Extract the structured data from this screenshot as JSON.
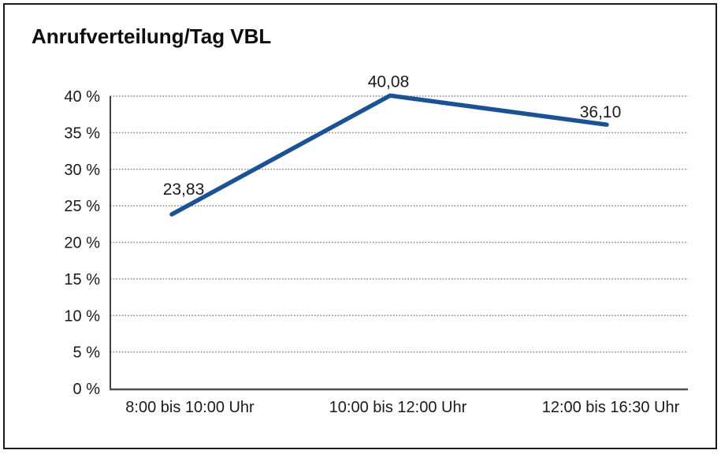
{
  "chart_data": {
    "type": "line",
    "title": "Anrufverteilung/Tag VBL",
    "categories": [
      "8:00 bis 10:00 Uhr",
      "10:00 bis 12:00 Uhr",
      "12:00 bis 16:30 Uhr"
    ],
    "values": [
      23.83,
      40.08,
      36.1
    ],
    "value_labels": [
      "23,83",
      "40,08",
      "36,10"
    ],
    "xlabel": "",
    "ylabel": "",
    "ylim": [
      0,
      40
    ],
    "y_ticks": [
      0,
      5,
      10,
      15,
      20,
      25,
      30,
      35,
      40
    ],
    "y_tick_suffix": " %",
    "grid": "horizontal-dotted",
    "legend": "none",
    "line_color": "#1a5294",
    "grid_color": "#7f7f7f",
    "x_axis_color": "#4d4d4d",
    "y_axis_color": "#141414"
  }
}
